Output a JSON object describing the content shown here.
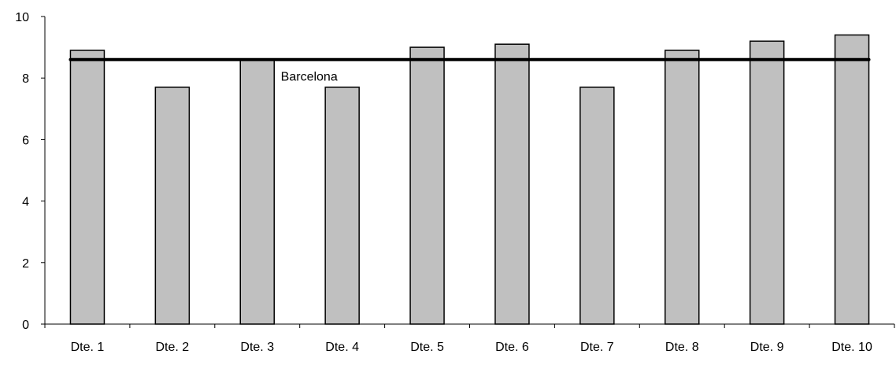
{
  "chart_data": {
    "type": "bar",
    "title": "",
    "xlabel": "",
    "ylabel": "",
    "categories": [
      "Dte. 1",
      "Dte. 2",
      "Dte. 3",
      "Dte. 4",
      "Dte. 5",
      "Dte. 6",
      "Dte. 7",
      "Dte. 8",
      "Dte. 9",
      "Dte. 10"
    ],
    "values": [
      8.9,
      7.7,
      8.6,
      7.7,
      9.0,
      9.1,
      7.7,
      8.9,
      9.2,
      9.4
    ],
    "ylim": [
      0,
      10
    ],
    "yticks": [
      "0",
      "2",
      "4",
      "6",
      "8",
      "10"
    ],
    "grid": false,
    "legend": "none",
    "reference_line": {
      "label": "Barcelona",
      "value": 8.6
    },
    "colors": {
      "bar_fill": "#c0c0c0",
      "bar_stroke": "#000000",
      "reference_line": "#000000",
      "axis": "#000000"
    }
  }
}
